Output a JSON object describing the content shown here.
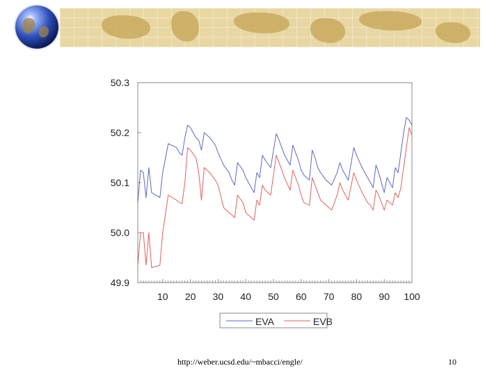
{
  "footer": {
    "url": "http://weber.ucsd.edu/~mbacci/engle/",
    "page_number": "10"
  },
  "colors": {
    "series_a": "#5b67c2",
    "series_b": "#e0605a",
    "banner": "#e9d7a3"
  },
  "icons": [
    "globe-icon",
    "world-map-banner"
  ],
  "chart_data": {
    "type": "line",
    "title": "",
    "xlabel": "",
    "ylabel": "",
    "xlim": [
      1,
      100
    ],
    "ylim": [
      49.9,
      50.3
    ],
    "x_ticks": [
      10,
      20,
      30,
      40,
      50,
      60,
      70,
      80,
      90,
      100
    ],
    "y_ticks": [
      "50.3",
      "50.2",
      "50.1",
      "50.0",
      "49.9"
    ],
    "y_tick_values": [
      50.3,
      50.2,
      50.1,
      50.0,
      49.9
    ],
    "grid": false,
    "legend_position": "bottom-center",
    "series": [
      {
        "name": "EVA",
        "x": [
          1,
          2,
          3,
          4,
          5,
          6,
          9,
          10,
          12,
          15,
          16,
          17,
          18,
          19,
          20,
          22,
          23,
          24,
          25,
          27,
          29,
          30,
          32,
          34,
          35,
          36,
          37,
          39,
          40,
          42,
          43,
          44,
          45,
          46,
          47,
          49,
          51,
          52,
          53,
          54,
          56,
          57,
          58,
          59,
          60,
          61,
          63,
          64,
          65,
          66,
          67,
          69,
          71,
          73,
          74,
          75,
          77,
          79,
          80,
          82,
          84,
          85,
          86,
          87,
          88,
          89,
          90,
          91,
          92,
          93,
          94,
          95,
          96,
          97,
          98,
          99,
          100
        ],
        "values": [
          50.06,
          50.125,
          50.12,
          50.07,
          50.13,
          50.08,
          50.07,
          50.12,
          50.178,
          50.17,
          50.16,
          50.155,
          50.19,
          50.215,
          50.21,
          50.19,
          50.185,
          50.165,
          50.2,
          50.19,
          50.175,
          50.16,
          50.135,
          50.12,
          50.105,
          50.095,
          50.14,
          50.125,
          50.11,
          50.09,
          50.08,
          50.12,
          50.11,
          50.155,
          50.145,
          50.13,
          50.198,
          50.185,
          50.17,
          50.155,
          50.135,
          50.175,
          50.16,
          50.145,
          50.125,
          50.115,
          50.105,
          50.165,
          50.15,
          50.13,
          50.12,
          50.105,
          50.095,
          50.12,
          50.14,
          50.125,
          50.105,
          50.17,
          50.155,
          50.13,
          50.11,
          50.1,
          50.09,
          50.135,
          50.12,
          50.1,
          50.08,
          50.11,
          50.1,
          50.09,
          50.13,
          50.12,
          50.16,
          50.2,
          50.23,
          50.225,
          50.215
        ]
      },
      {
        "name": "EVB",
        "x": [
          1,
          2,
          3,
          4,
          5,
          6,
          9,
          10,
          12,
          15,
          16,
          17,
          18,
          19,
          20,
          22,
          23,
          24,
          25,
          27,
          29,
          30,
          32,
          34,
          35,
          36,
          37,
          39,
          40,
          42,
          43,
          44,
          45,
          46,
          47,
          49,
          51,
          52,
          53,
          54,
          56,
          57,
          58,
          59,
          60,
          61,
          63,
          64,
          65,
          66,
          67,
          69,
          71,
          73,
          74,
          75,
          77,
          79,
          80,
          82,
          84,
          85,
          86,
          87,
          88,
          89,
          90,
          91,
          92,
          93,
          94,
          95,
          96,
          97,
          98,
          99,
          100
        ],
        "values": [
          49.935,
          50.0,
          50.0,
          49.935,
          50.0,
          49.93,
          49.935,
          50.0,
          50.075,
          50.065,
          50.06,
          50.058,
          50.1,
          50.17,
          50.165,
          50.15,
          50.12,
          50.065,
          50.13,
          50.12,
          50.105,
          50.095,
          50.05,
          50.04,
          50.035,
          50.03,
          50.075,
          50.06,
          50.04,
          50.03,
          50.025,
          50.065,
          50.055,
          50.095,
          50.085,
          50.075,
          50.155,
          50.14,
          50.125,
          50.11,
          50.085,
          50.125,
          50.11,
          50.095,
          50.075,
          50.06,
          50.055,
          50.11,
          50.095,
          50.08,
          50.065,
          50.055,
          50.045,
          50.075,
          50.1,
          50.085,
          50.065,
          50.12,
          50.105,
          50.08,
          50.06,
          50.055,
          50.045,
          50.085,
          50.075,
          50.06,
          50.045,
          50.065,
          50.06,
          50.055,
          50.08,
          50.07,
          50.09,
          50.13,
          50.17,
          50.21,
          50.195
        ]
      }
    ]
  }
}
